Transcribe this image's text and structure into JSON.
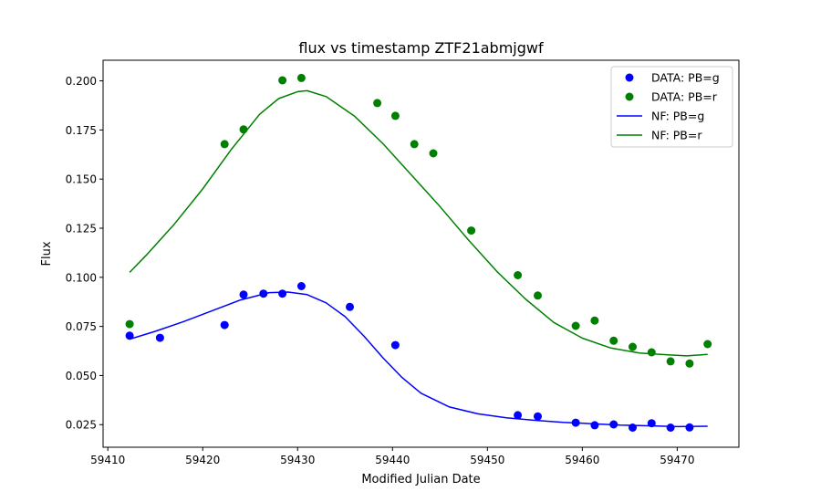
{
  "chart_data": {
    "type": "scatter",
    "title": "flux vs timestamp ZTF21abmjgwf",
    "xlabel": "Modified Julian Date",
    "ylabel": "Flux",
    "xlim": [
      59409.5,
      59476.5
    ],
    "ylim": [
      0.0135,
      0.2105
    ],
    "xticks": [
      59410,
      59420,
      59430,
      59440,
      59450,
      59460,
      59470
    ],
    "xtick_labels": [
      "59410",
      "59420",
      "59430",
      "59440",
      "59450",
      "59460",
      "59470"
    ],
    "yticks": [
      0.025,
      0.05,
      0.075,
      0.1,
      0.125,
      0.15,
      0.175,
      0.2
    ],
    "ytick_labels": [
      "0.025",
      "0.050",
      "0.075",
      "0.100",
      "0.125",
      "0.150",
      "0.175",
      "0.200"
    ],
    "grid": false,
    "legend_position": "top-right",
    "series": [
      {
        "name": "DATA: PB=g",
        "kind": "scatter",
        "color": "#0000ff",
        "x": [
          59412.3,
          59415.5,
          59422.3,
          59424.3,
          59426.4,
          59428.4,
          59430.4,
          59435.5,
          59440.3,
          59453.2,
          59455.3,
          59459.3,
          59461.3,
          59463.3,
          59465.3,
          59467.3,
          59469.3,
          59471.3
        ],
        "y": [
          0.0703,
          0.0692,
          0.0757,
          0.0912,
          0.0917,
          0.0917,
          0.0955,
          0.0849,
          0.0655,
          0.0298,
          0.0292,
          0.026,
          0.0247,
          0.0251,
          0.0235,
          0.0257,
          0.0235,
          0.0236
        ]
      },
      {
        "name": "DATA: PB=r",
        "kind": "scatter",
        "color": "#008000",
        "x": [
          59412.3,
          59422.3,
          59424.3,
          59428.4,
          59430.4,
          59438.4,
          59440.3,
          59442.3,
          59444.3,
          59448.3,
          59453.2,
          59455.3,
          59459.3,
          59461.3,
          59463.3,
          59465.3,
          59467.3,
          59469.3,
          59471.3,
          59473.2
        ],
        "y": [
          0.0762,
          0.1678,
          0.1753,
          0.2003,
          0.2015,
          0.1887,
          0.1822,
          0.1678,
          0.1631,
          0.1238,
          0.1011,
          0.0907,
          0.0753,
          0.078,
          0.0677,
          0.0646,
          0.0618,
          0.0572,
          0.0561,
          0.066
        ]
      },
      {
        "name": "NF: PB=g",
        "kind": "line",
        "color": "#0000ff",
        "x": [
          59412.3,
          59415,
          59418,
          59421,
          59424,
          59427,
          59429,
          59431,
          59433,
          59435,
          59437,
          59439,
          59441,
          59443,
          59446,
          59449,
          59452,
          59455,
          59458,
          59461,
          59464,
          59467,
          59470,
          59473.2
        ],
        "y": [
          0.0685,
          0.0725,
          0.0775,
          0.083,
          0.0885,
          0.0922,
          0.0925,
          0.0912,
          0.087,
          0.08,
          0.07,
          0.059,
          0.049,
          0.041,
          0.034,
          0.0305,
          0.0285,
          0.0272,
          0.0262,
          0.0255,
          0.0248,
          0.0244,
          0.024,
          0.0242
        ]
      },
      {
        "name": "NF: PB=r",
        "kind": "line",
        "color": "#008000",
        "x": [
          59412.3,
          59414,
          59417,
          59420,
          59423,
          59426,
          59428,
          59430,
          59431,
          59433,
          59436,
          59439,
          59442,
          59445,
          59448,
          59451,
          59454,
          59457,
          59460,
          59463,
          59466,
          59469,
          59471,
          59473.2
        ],
        "y": [
          0.1025,
          0.111,
          0.127,
          0.145,
          0.165,
          0.183,
          0.191,
          0.1945,
          0.195,
          0.192,
          0.182,
          0.168,
          0.152,
          0.136,
          0.119,
          0.103,
          0.089,
          0.077,
          0.069,
          0.064,
          0.0615,
          0.0605,
          0.06,
          0.0608
        ]
      }
    ]
  }
}
